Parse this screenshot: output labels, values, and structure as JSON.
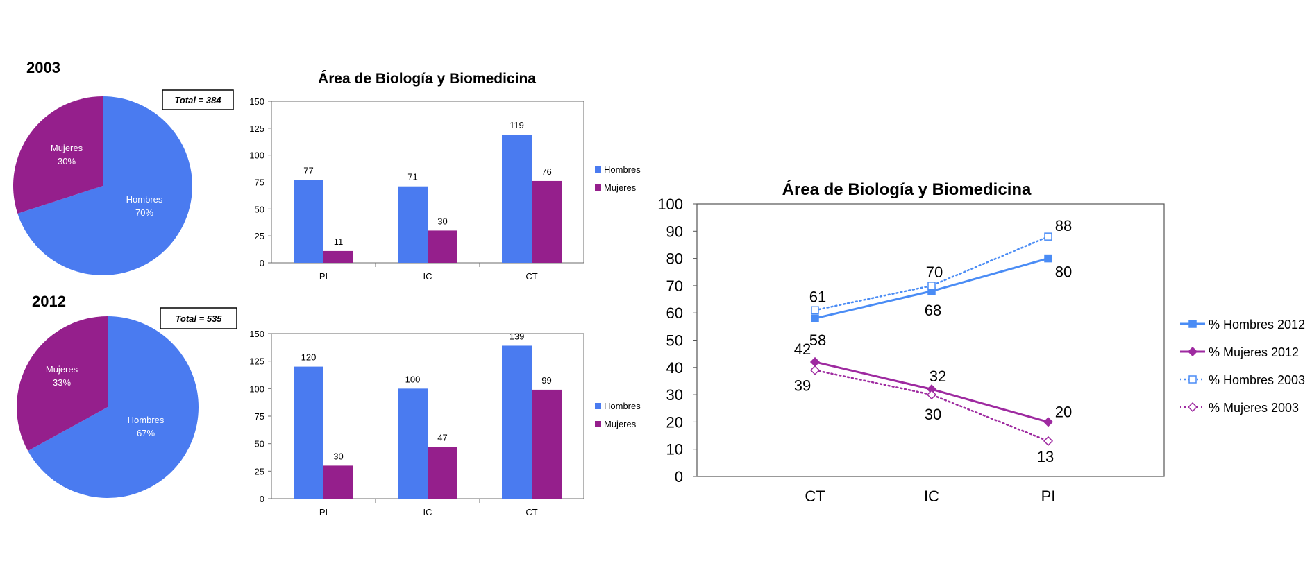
{
  "colors": {
    "hombres": "#4a7bf0",
    "mujeres": "#951f8c",
    "hombres_line": "#4a8cf5",
    "mujeres_line": "#9e2aa0"
  },
  "chart_data": [
    {
      "id": "pie2003",
      "type": "pie",
      "title": "2003",
      "annotation": "Total = 384",
      "slices": [
        {
          "label": "Hombres",
          "pct_label": "70%",
          "value": 70
        },
        {
          "label": "Mujeres",
          "pct_label": "30%",
          "value": 30
        }
      ]
    },
    {
      "id": "bar2003",
      "type": "bar",
      "title": "Área de Biología y Biomedicina",
      "categories": [
        "PI",
        "IC",
        "CT"
      ],
      "series": [
        {
          "name": "Hombres",
          "values": [
            77,
            71,
            119
          ]
        },
        {
          "name": "Mujeres",
          "values": [
            11,
            30,
            76
          ]
        }
      ],
      "ylim": [
        0,
        150
      ],
      "yticks": [
        "0",
        "25",
        "50",
        "75",
        "100",
        "125",
        "150"
      ],
      "legend": "right"
    },
    {
      "id": "pie2012",
      "type": "pie",
      "title": "2012",
      "annotation": "Total = 535",
      "slices": [
        {
          "label": "Hombres",
          "pct_label": "67%",
          "value": 67
        },
        {
          "label": "Mujeres",
          "pct_label": "33%",
          "value": 33
        }
      ]
    },
    {
      "id": "bar2012",
      "type": "bar",
      "title": "",
      "categories": [
        "PI",
        "IC",
        "CT"
      ],
      "series": [
        {
          "name": "Hombres",
          "values": [
            120,
            100,
            139
          ]
        },
        {
          "name": "Mujeres",
          "values": [
            30,
            47,
            99
          ]
        }
      ],
      "ylim": [
        0,
        150
      ],
      "yticks": [
        "0",
        "25",
        "50",
        "75",
        "100",
        "125",
        "150"
      ],
      "legend": "right"
    },
    {
      "id": "line",
      "type": "line",
      "title": "Área de Biología y Biomedicina",
      "categories": [
        "CT",
        "IC",
        "PI"
      ],
      "series": [
        {
          "name": "% Hombres 2012",
          "values": [
            58,
            68,
            80
          ],
          "labels": [
            "58",
            "68",
            "80"
          ],
          "style": "solid",
          "marker": "square"
        },
        {
          "name": "% Mujeres 2012",
          "values": [
            42,
            32,
            20
          ],
          "labels": [
            "42",
            "32",
            "20"
          ],
          "style": "solid",
          "marker": "diamond"
        },
        {
          "name": "% Hombres 2003",
          "values": [
            61,
            70,
            88
          ],
          "labels": [
            "61",
            "70",
            "88"
          ],
          "style": "dotted",
          "marker": "square-open"
        },
        {
          "name": "% Mujeres 2003",
          "values": [
            39,
            30,
            13
          ],
          "labels": [
            "39",
            "30",
            "13"
          ],
          "style": "dotted",
          "marker": "diamond-open"
        }
      ],
      "ylim": [
        0,
        100
      ],
      "yticks": [
        "0",
        "10",
        "20",
        "30",
        "40",
        "50",
        "60",
        "70",
        "80",
        "90",
        "100"
      ],
      "legend": "right"
    }
  ]
}
